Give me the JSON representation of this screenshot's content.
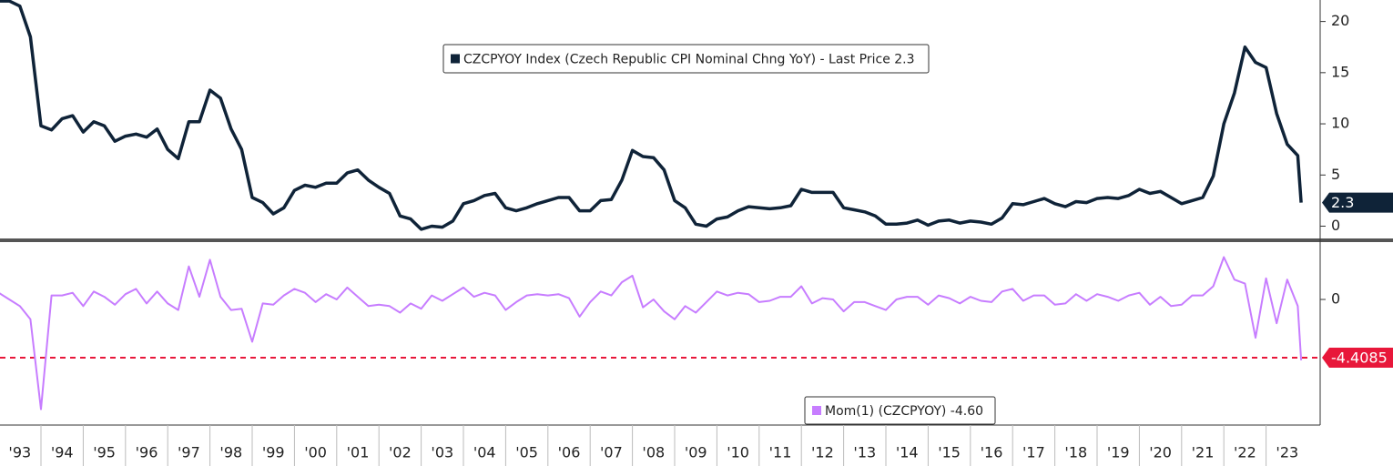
{
  "chart_data": [
    {
      "type": "line",
      "legend": "CZCPYOY Index (Czech Republic CPI Nominal Chng YoY) - Last Price 2.3",
      "x": [
        1993,
        1993.25,
        1993.5,
        1993.75,
        1994,
        1994.25,
        1994.5,
        1994.75,
        1995,
        1995.25,
        1995.5,
        1995.75,
        1996,
        1996.25,
        1996.5,
        1996.75,
        1997,
        1997.25,
        1997.5,
        1997.75,
        1998,
        1998.25,
        1998.5,
        1998.75,
        1999,
        1999.25,
        1999.5,
        1999.75,
        2000,
        2000.25,
        2000.5,
        2000.75,
        2001,
        2001.25,
        2001.5,
        2001.75,
        2002,
        2002.25,
        2002.5,
        2002.75,
        2003,
        2003.25,
        2003.5,
        2003.75,
        2004,
        2004.25,
        2004.5,
        2004.75,
        2005,
        2005.25,
        2005.5,
        2005.75,
        2006,
        2006.25,
        2006.5,
        2006.75,
        2007,
        2007.25,
        2007.5,
        2007.75,
        2008,
        2008.25,
        2008.5,
        2008.75,
        2009,
        2009.25,
        2009.5,
        2009.75,
        2010,
        2010.25,
        2010.5,
        2010.75,
        2011,
        2011.25,
        2011.5,
        2011.75,
        2012,
        2012.25,
        2012.5,
        2012.75,
        2013,
        2013.25,
        2013.5,
        2013.75,
        2014,
        2014.25,
        2014.5,
        2014.75,
        2015,
        2015.25,
        2015.5,
        2015.75,
        2016,
        2016.25,
        2016.5,
        2016.75,
        2017,
        2017.25,
        2017.5,
        2017.75,
        2018,
        2018.25,
        2018.5,
        2018.75,
        2019,
        2019.25,
        2019.5,
        2019.75,
        2020,
        2020.25,
        2020.5,
        2020.75,
        2021,
        2021.25,
        2021.5,
        2021.75,
        2022,
        2022.25,
        2022.5,
        2022.75,
        2023,
        2023.25,
        2023.5,
        2023.75,
        2023.83
      ],
      "series": [
        {
          "name": "CZCPYOY Index",
          "color": "#0f2338",
          "values": [
            22,
            22,
            21.5,
            18.5,
            9.8,
            9.4,
            10.5,
            10.8,
            9.2,
            10.2,
            9.8,
            8.3,
            8.8,
            9,
            8.7,
            9.5,
            7.5,
            6.6,
            10.2,
            10.2,
            13.3,
            12.5,
            9.5,
            7.5,
            2.8,
            2.3,
            1.2,
            1.8,
            3.5,
            4,
            3.8,
            4.2,
            4.2,
            5.2,
            5.5,
            4.5,
            3.8,
            3.2,
            1.0,
            0.7,
            -0.3,
            0,
            -0.1,
            0.5,
            2.2,
            2.5,
            3.0,
            3.2,
            1.8,
            1.5,
            1.8,
            2.2,
            2.5,
            2.8,
            2.8,
            1.5,
            1.5,
            2.5,
            2.6,
            4.5,
            7.4,
            6.8,
            6.7,
            5.5,
            2.5,
            1.8,
            0.2,
            0,
            0.7,
            0.9,
            1.5,
            1.9,
            1.8,
            1.7,
            1.8,
            2.0,
            3.6,
            3.3,
            3.3,
            3.3,
            1.8,
            1.6,
            1.4,
            1.0,
            0.2,
            0.2,
            0.3,
            0.6,
            0.1,
            0.5,
            0.6,
            0.3,
            0.5,
            0.4,
            0.2,
            0.8,
            2.2,
            2.1,
            2.4,
            2.7,
            2.2,
            1.9,
            2.4,
            2.3,
            2.7,
            2.8,
            2.7,
            3.0,
            3.6,
            3.2,
            3.4,
            2.8,
            2.2,
            2.5,
            2.8,
            4.9,
            10.0,
            13.0,
            17.5,
            16.0,
            15.5,
            11.0,
            8.0,
            6.9,
            2.3
          ]
        }
      ],
      "xlim": [
        1993.03,
        2024.28
      ],
      "ylim": [
        -1.2,
        22.1
      ],
      "yticks": [
        0,
        5,
        10,
        15,
        20
      ]
    },
    {
      "type": "line",
      "legend": "Mom(1) (CZCPYOY) -4.60",
      "x": [
        1993,
        1993.25,
        1993.5,
        1993.75,
        1994,
        1994.25,
        1994.5,
        1994.75,
        1995,
        1995.25,
        1995.5,
        1995.75,
        1996,
        1996.25,
        1996.5,
        1996.75,
        1997,
        1997.25,
        1997.5,
        1997.75,
        1998,
        1998.25,
        1998.5,
        1998.75,
        1999,
        1999.25,
        1999.5,
        1999.75,
        2000,
        2000.25,
        2000.5,
        2000.75,
        2001,
        2001.25,
        2001.5,
        2001.75,
        2002,
        2002.25,
        2002.5,
        2002.75,
        2003,
        2003.25,
        2003.5,
        2003.75,
        2004,
        2004.25,
        2004.5,
        2004.75,
        2005,
        2005.25,
        2005.5,
        2005.75,
        2006,
        2006.25,
        2006.5,
        2006.75,
        2007,
        2007.25,
        2007.5,
        2007.75,
        2008,
        2008.25,
        2008.5,
        2008.75,
        2009,
        2009.25,
        2009.5,
        2009.75,
        2010,
        2010.25,
        2010.5,
        2010.75,
        2011,
        2011.25,
        2011.5,
        2011.75,
        2012,
        2012.25,
        2012.5,
        2012.75,
        2013,
        2013.25,
        2013.5,
        2013.75,
        2014,
        2014.25,
        2014.5,
        2014.75,
        2015,
        2015.25,
        2015.5,
        2015.75,
        2016,
        2016.25,
        2016.5,
        2016.75,
        2017,
        2017.25,
        2017.5,
        2017.75,
        2018,
        2018.25,
        2018.5,
        2018.75,
        2019,
        2019.25,
        2019.5,
        2019.75,
        2020,
        2020.25,
        2020.5,
        2020.75,
        2021,
        2021.25,
        2021.5,
        2021.75,
        2022,
        2022.25,
        2022.5,
        2022.75,
        2023,
        2023.25,
        2023.5,
        2023.75,
        2023.83
      ],
      "series": [
        {
          "name": "Mom(1)",
          "color": "#c77dff",
          "values": [
            0.5,
            0,
            -0.5,
            -1.5,
            -8.3,
            0.3,
            0.3,
            0.5,
            -0.5,
            0.6,
            0.2,
            -0.4,
            0.4,
            0.8,
            -0.3,
            0.6,
            -0.3,
            -0.8,
            2.5,
            0.2,
            3.0,
            0.2,
            -0.8,
            -0.7,
            -3.2,
            -0.3,
            -0.4,
            0.3,
            0.8,
            0.5,
            -0.2,
            0.4,
            0,
            0.9,
            0.2,
            -0.5,
            -0.4,
            -0.5,
            -1.0,
            -0.3,
            -0.7,
            0.3,
            -0.1,
            0.4,
            0.9,
            0.2,
            0.5,
            0.3,
            -0.8,
            -0.2,
            0.3,
            0.4,
            0.3,
            0.4,
            0.1,
            -1.3,
            -0.2,
            0.6,
            0.3,
            1.3,
            1.8,
            -0.6,
            0,
            -0.9,
            -1.5,
            -0.5,
            -1.0,
            -0.2,
            0.6,
            0.3,
            0.5,
            0.4,
            -0.2,
            -0.1,
            0.2,
            0.2,
            1.0,
            -0.3,
            0.1,
            0,
            -0.9,
            -0.2,
            -0.2,
            -0.5,
            -0.8,
            0,
            0.2,
            0.2,
            -0.4,
            0.3,
            0.1,
            -0.3,
            0.2,
            -0.1,
            -0.2,
            0.6,
            0.8,
            -0.1,
            0.3,
            0.3,
            -0.4,
            -0.3,
            0.4,
            -0.1,
            0.4,
            0.2,
            -0.1,
            0.3,
            0.5,
            -0.4,
            0.2,
            -0.5,
            -0.4,
            0.3,
            0.3,
            1.0,
            3.2,
            1.5,
            1.2,
            -2.9,
            1.6,
            -1.8,
            1.5,
            -0.5,
            -4.6
          ]
        }
      ],
      "reference_line": -4.4085,
      "reference_color": "#e8173a",
      "xlim": [
        1993.03,
        2024.28
      ],
      "ylim": [
        -9.5,
        4.2
      ],
      "yticks": [
        0
      ],
      "xticks": [
        {
          "value": 1993,
          "label": "'93"
        },
        {
          "value": 1994,
          "label": "'94"
        },
        {
          "value": 1995,
          "label": "'95"
        },
        {
          "value": 1996,
          "label": "'96"
        },
        {
          "value": 1997,
          "label": "'97"
        },
        {
          "value": 1998,
          "label": "'98"
        },
        {
          "value": 1999,
          "label": "'99"
        },
        {
          "value": 2000,
          "label": "'00"
        },
        {
          "value": 2001,
          "label": "'01"
        },
        {
          "value": 2002,
          "label": "'02"
        },
        {
          "value": 2003,
          "label": "'03"
        },
        {
          "value": 2004,
          "label": "'04"
        },
        {
          "value": 2005,
          "label": "'05"
        },
        {
          "value": 2006,
          "label": "'06"
        },
        {
          "value": 2007,
          "label": "'07"
        },
        {
          "value": 2008,
          "label": "'08"
        },
        {
          "value": 2009,
          "label": "'09"
        },
        {
          "value": 2010,
          "label": "'10"
        },
        {
          "value": 2011,
          "label": "'11"
        },
        {
          "value": 2012,
          "label": "'12"
        },
        {
          "value": 2013,
          "label": "'13"
        },
        {
          "value": 2014,
          "label": "'14"
        },
        {
          "value": 2015,
          "label": "'15"
        },
        {
          "value": 2016,
          "label": "'16"
        },
        {
          "value": 2017,
          "label": "'17"
        },
        {
          "value": 2018,
          "label": "'18"
        },
        {
          "value": 2019,
          "label": "'19"
        },
        {
          "value": 2020,
          "label": "'20"
        },
        {
          "value": 2021,
          "label": "'21"
        },
        {
          "value": 2022,
          "label": "'22"
        },
        {
          "value": 2023,
          "label": "'23"
        }
      ]
    }
  ]
}
